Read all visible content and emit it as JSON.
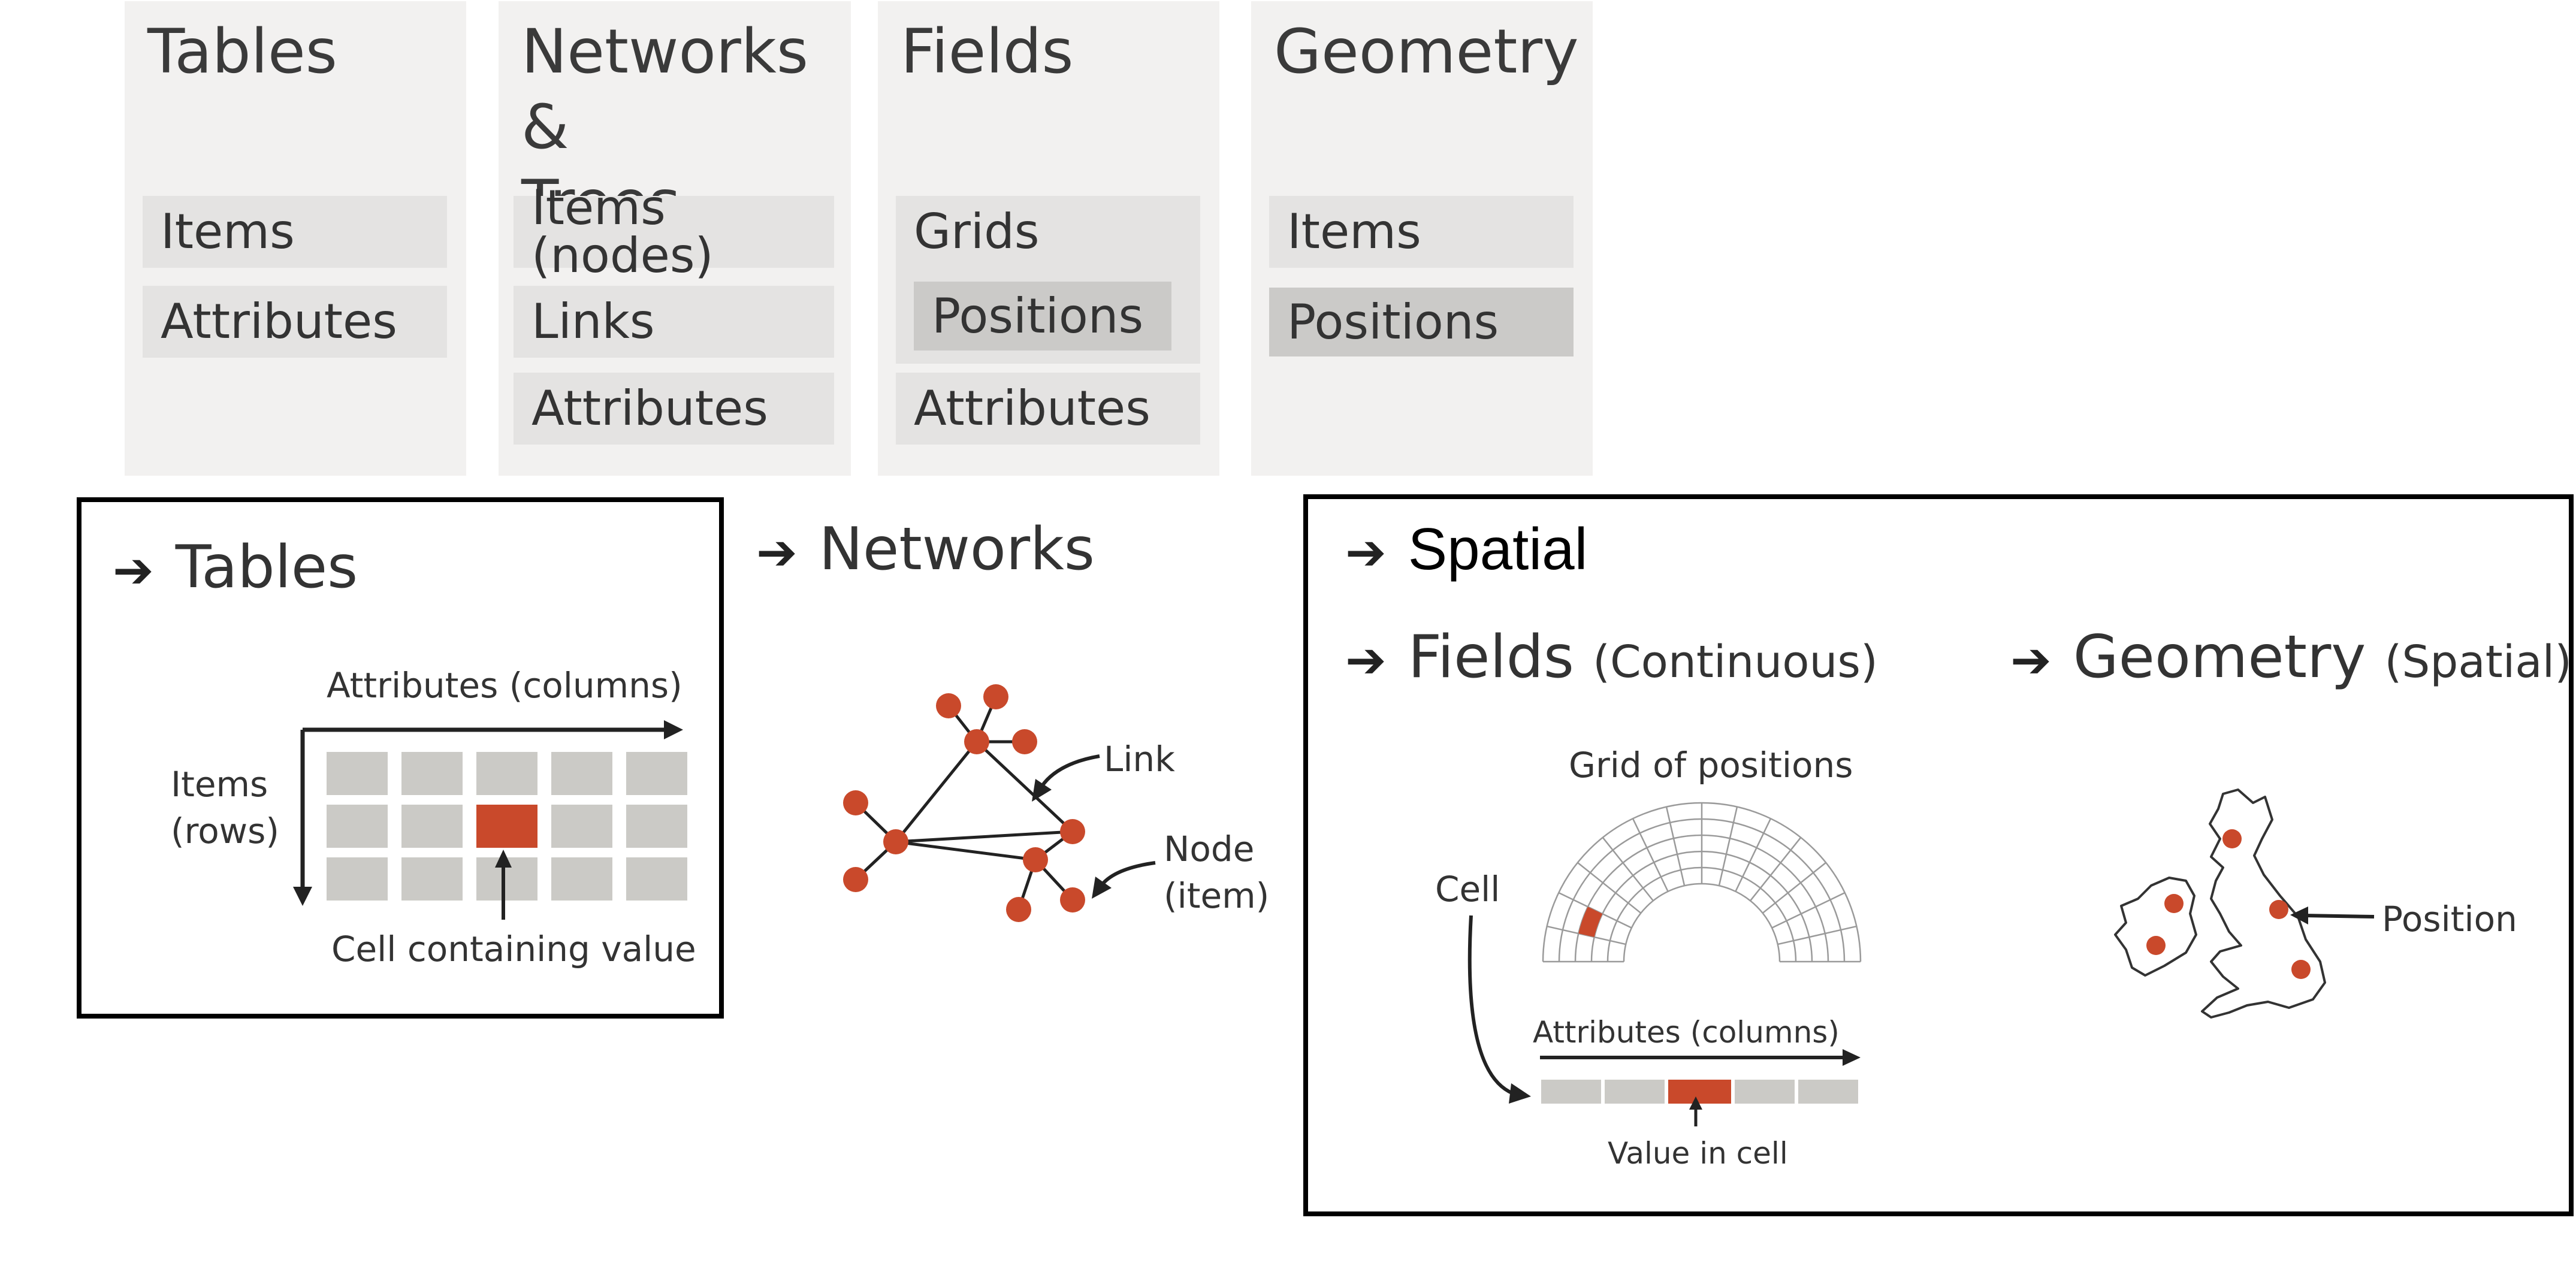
{
  "cards": [
    {
      "title": "Tables",
      "items": [
        "Items",
        "Attributes"
      ]
    },
    {
      "title": "Networks &\nTrees",
      "items": [
        "Items (nodes)",
        "Links",
        "Attributes"
      ]
    },
    {
      "title": "Fields",
      "items": [
        "Grids",
        "Positions",
        "Attributes"
      ]
    },
    {
      "title": "Geometry",
      "items": [
        "Items",
        "Positions"
      ]
    }
  ],
  "arrow_glyph": "➔",
  "tables_panel": {
    "heading": "Tables",
    "attributes_label": "Attributes (columns)",
    "items_label": "Items\n(rows)",
    "cell_label": "Cell containing value"
  },
  "networks_panel": {
    "heading": "Networks",
    "link_label": "Link",
    "node_label": "Node\n(item)"
  },
  "spatial_panel": {
    "heading": "Spatial",
    "fields_heading": "Fields",
    "fields_sub": "(Continuous)",
    "geometry_heading": "Geometry",
    "geometry_sub": "(Spatial)",
    "grid_label": "Grid of positions",
    "cell_label": "Cell",
    "attributes_label": "Attributes (columns)",
    "value_label": "Value in cell",
    "position_label": "Position"
  },
  "colors": {
    "accent": "#c9492b",
    "cell_gray": "#cbcac6",
    "card_bg": "#f2f1f0",
    "chip_bg": "#e4e3e2",
    "chip_dark": "#cbcac8"
  }
}
